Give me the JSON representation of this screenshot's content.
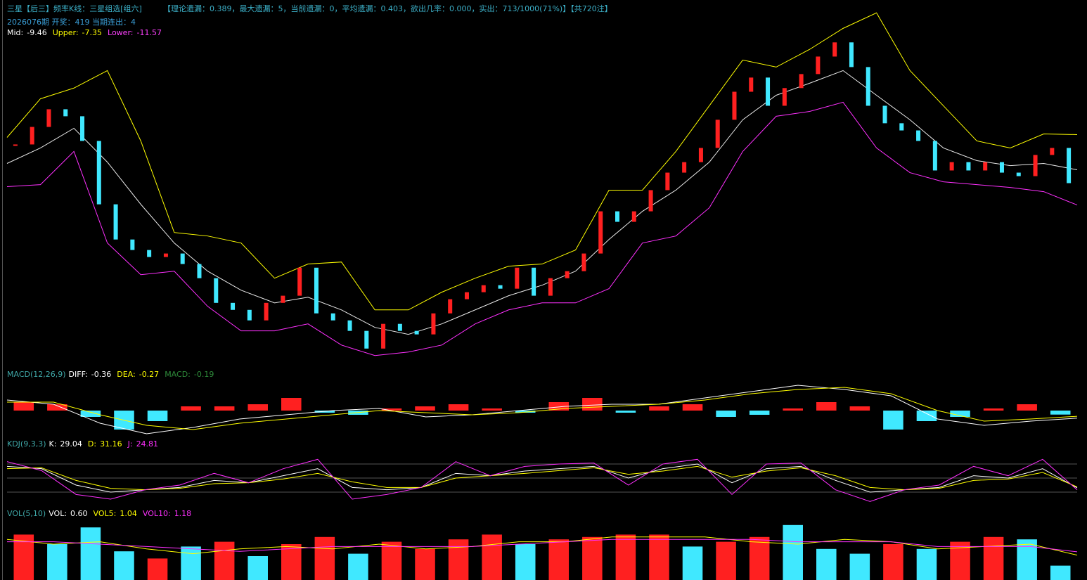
{
  "header": {
    "title": "三星【后三】频率K线：三星组选[组六]",
    "stats": "【理论遗漏：0.389，最大遗漏：5，当前遗漏：0，平均遗漏：0.403，欲出几率：0.000，实出：713/1000(71%)】【共720注】",
    "period": "2026076期 开奖：419 当期连出：4"
  },
  "chart_data": [
    {
      "type": "candlestick",
      "ylim": [
        -21.2,
        0.3
      ],
      "readouts": [
        {
          "name": "Mid:",
          "value": -9.46,
          "color": "#ffffff"
        },
        {
          "name": "Upper:",
          "value": -7.35,
          "color": "#ffff00"
        },
        {
          "name": "Lower:",
          "value": -11.57,
          "color": "#ff40ff"
        }
      ],
      "candles": {
        "up_color": "#ff2020",
        "down_color": "#40e8ff",
        "values": [
          -7.94,
          -6.89,
          -5.83,
          -6.25,
          -7.73,
          -11.53,
          -13.64,
          -14.27,
          -14.69,
          -14.48,
          -15.11,
          -15.96,
          -17.44,
          -17.86,
          -18.49,
          -17.44,
          -17.01,
          -15.33,
          -18.07,
          -18.49,
          -19.12,
          -20.18,
          -18.7,
          -19.12,
          -19.33,
          -18.07,
          -17.22,
          -16.8,
          -16.38,
          -16.59,
          -15.33,
          -17.01,
          -15.96,
          -15.54,
          -14.48,
          -11.95,
          -12.58,
          -11.95,
          -10.68,
          -9.63,
          -9.0,
          -8.15,
          -6.46,
          -4.78,
          -3.93,
          -5.62,
          -4.56,
          -3.72,
          -2.67,
          -1.82,
          -3.3,
          -5.62,
          -6.67,
          -7.1,
          -7.73,
          -9.5,
          -9.0,
          -9.5,
          -9.0,
          -9.63,
          -9.84,
          -8.57,
          -8.15,
          -10.26
        ]
      },
      "series": [
        {
          "name": "Mid",
          "type": "line",
          "color": "#e8e8e8",
          "values": [
            -9.08,
            -8.15,
            -6.97,
            -9.0,
            -11.53,
            -13.85,
            -15.54,
            -16.68,
            -17.44,
            -17.1,
            -17.86,
            -18.91,
            -19.33,
            -18.7,
            -17.86,
            -17.01,
            -16.38,
            -15.54,
            -13.64,
            -11.95,
            -10.68,
            -9.0,
            -6.46,
            -4.99,
            -4.27,
            -3.51,
            -4.99,
            -6.46,
            -8.15,
            -8.91,
            -9.21,
            -9.08,
            -9.46
          ]
        },
        {
          "name": "Upper",
          "type": "line",
          "color": "#ffff00",
          "values": [
            -7.52,
            -5.2,
            -4.56,
            -3.51,
            -7.73,
            -13.22,
            -13.43,
            -13.85,
            -15.96,
            -15.11,
            -14.99,
            -17.86,
            -17.86,
            -16.8,
            -15.96,
            -15.24,
            -15.11,
            -14.27,
            -10.68,
            -10.68,
            -8.36,
            -5.62,
            -2.88,
            -3.3,
            -2.24,
            -0.98,
            -0.05,
            -3.51,
            -5.62,
            -7.73,
            -8.15,
            -7.31,
            -7.35
          ]
        },
        {
          "name": "Lower",
          "type": "line",
          "color": "#ff30ff",
          "values": [
            -10.47,
            -10.35,
            -8.36,
            -13.85,
            -15.75,
            -15.54,
            -17.65,
            -19.12,
            -19.12,
            -18.7,
            -19.97,
            -20.6,
            -20.39,
            -19.97,
            -18.7,
            -17.86,
            -17.44,
            -17.44,
            -16.59,
            -13.85,
            -13.43,
            -11.74,
            -8.36,
            -6.25,
            -5.96,
            -5.41,
            -8.15,
            -9.63,
            -10.18,
            -10.35,
            -10.52,
            -10.77,
            -11.57
          ]
        }
      ]
    },
    {
      "type": "macd",
      "title": "MACD(12,26,9)",
      "title_color": "#3fa8a8",
      "ylim": [
        -1.2,
        1.4
      ],
      "readouts": [
        {
          "name": "DIFF:",
          "value": -0.36,
          "color": "#ffffff"
        },
        {
          "name": "DEA:",
          "value": -0.27,
          "color": "#ffff00"
        },
        {
          "name": "MACD:",
          "value": -0.19,
          "color": "#2e8b3a"
        }
      ],
      "series": [
        {
          "name": "MACD",
          "type": "bar",
          "up_color": "#ff2020",
          "down_color": "#40e8ff",
          "values": [
            0.4,
            0.3,
            -0.3,
            -0.9,
            -0.5,
            0.2,
            0.2,
            0.3,
            0.6,
            -0.1,
            -0.2,
            0.1,
            0.2,
            0.3,
            0.1,
            -0.1,
            0.4,
            0.6,
            -0.1,
            0.2,
            0.3,
            -0.3,
            -0.2,
            0.1,
            0.4,
            0.2,
            -0.9,
            -0.5,
            -0.3,
            0.1,
            0.3,
            -0.19
          ]
        },
        {
          "name": "DIFF",
          "type": "line",
          "color": "#ffffff",
          "values": [
            0.5,
            0.3,
            -0.6,
            -1.1,
            -0.8,
            -0.4,
            -0.2,
            0.0,
            0.1,
            -0.3,
            -0.2,
            0.0,
            0.2,
            0.3,
            0.3,
            0.6,
            0.9,
            1.2,
            1.0,
            0.7,
            -0.4,
            -0.7,
            -0.5,
            -0.36
          ]
        },
        {
          "name": "DEA",
          "type": "line",
          "color": "#ffff00",
          "values": [
            0.4,
            0.4,
            -0.2,
            -0.7,
            -0.9,
            -0.6,
            -0.4,
            -0.2,
            0.0,
            -0.1,
            -0.2,
            -0.1,
            0.1,
            0.2,
            0.3,
            0.5,
            0.8,
            1.0,
            1.1,
            0.8,
            0.0,
            -0.5,
            -0.4,
            -0.27
          ]
        }
      ]
    },
    {
      "type": "kdj",
      "title": "KDJ(9,3,3)",
      "title_color": "#3fa8a8",
      "ylim": [
        -10,
        110
      ],
      "gridlines": [
        20,
        50,
        80
      ],
      "grid_color": "#555555",
      "readouts": [
        {
          "name": "K:",
          "value": 29.04,
          "color": "#ffffff"
        },
        {
          "name": "D:",
          "value": 31.16,
          "color": "#ffff00"
        },
        {
          "name": "J:",
          "value": 24.81,
          "color": "#ff30ff"
        }
      ],
      "series": [
        {
          "name": "K",
          "type": "line",
          "color": "#ffffff",
          "values": [
            75,
            70,
            35,
            20,
            25,
            30,
            45,
            40,
            55,
            70,
            30,
            25,
            30,
            60,
            55,
            65,
            70,
            75,
            50,
            70,
            80,
            40,
            70,
            75,
            45,
            20,
            25,
            30,
            55,
            50,
            70,
            29.04
          ]
        },
        {
          "name": "D",
          "type": "line",
          "color": "#ffff00",
          "values": [
            70,
            72,
            45,
            28,
            25,
            28,
            38,
            40,
            48,
            60,
            42,
            30,
            30,
            50,
            55,
            60,
            66,
            72,
            58,
            65,
            75,
            52,
            65,
            72,
            55,
            30,
            25,
            28,
            45,
            48,
            62,
            31.16
          ]
        },
        {
          "name": "J",
          "type": "line",
          "color": "#ff30ff",
          "values": [
            85,
            66,
            15,
            5,
            25,
            35,
            60,
            40,
            70,
            90,
            5,
            15,
            30,
            85,
            55,
            75,
            80,
            82,
            35,
            80,
            90,
            15,
            80,
            82,
            25,
            0,
            25,
            35,
            75,
            55,
            90,
            24.81
          ]
        }
      ]
    },
    {
      "type": "volume",
      "title": "VOL(5,10)",
      "title_color": "#3fa8a8",
      "ylim": [
        0,
        2.5
      ],
      "readouts": [
        {
          "name": "VOL:",
          "value": 0.6,
          "label": "0.60",
          "color": "#ffffff"
        },
        {
          "name": "VOL5:",
          "value": 1.04,
          "color": "#ffff00"
        },
        {
          "name": "VOL10:",
          "value": 1.18,
          "color": "#ff30ff"
        }
      ],
      "series": [
        {
          "name": "VOL",
          "type": "bar",
          "values": [
            1.9,
            1.5,
            2.2,
            1.2,
            0.9,
            1.4,
            1.6,
            1.0,
            1.5,
            1.8,
            1.1,
            1.6,
            1.3,
            1.7,
            1.9,
            1.5,
            1.7,
            1.8,
            1.9,
            1.9,
            1.4,
            1.6,
            1.8,
            2.3,
            1.3,
            1.1,
            1.5,
            1.3,
            1.6,
            1.8,
            1.7,
            0.6
          ],
          "colors": [
            "#ff2020",
            "#40e8ff",
            "#40e8ff",
            "#40e8ff",
            "#ff2020",
            "#40e8ff",
            "#ff2020",
            "#40e8ff",
            "#ff2020",
            "#ff2020",
            "#40e8ff",
            "#ff2020",
            "#ff2020",
            "#ff2020",
            "#ff2020",
            "#40e8ff",
            "#ff2020",
            "#ff2020",
            "#ff2020",
            "#ff2020",
            "#40e8ff",
            "#ff2020",
            "#ff2020",
            "#40e8ff",
            "#40e8ff",
            "#40e8ff",
            "#ff2020",
            "#40e8ff",
            "#ff2020",
            "#ff2020",
            "#40e8ff",
            "#40e8ff"
          ]
        },
        {
          "name": "VOL5",
          "type": "line",
          "color": "#ffff00",
          "values": [
            1.7,
            1.5,
            1.6,
            1.3,
            1.1,
            1.3,
            1.4,
            1.3,
            1.5,
            1.3,
            1.4,
            1.6,
            1.6,
            1.8,
            1.8,
            1.8,
            1.6,
            1.5,
            1.7,
            1.6,
            1.3,
            1.4,
            1.5,
            1.04
          ]
        },
        {
          "name": "VOL10",
          "type": "line",
          "color": "#ff30ff",
          "values": [
            1.6,
            1.6,
            1.5,
            1.4,
            1.3,
            1.2,
            1.3,
            1.4,
            1.4,
            1.4,
            1.4,
            1.5,
            1.6,
            1.7,
            1.7,
            1.7,
            1.7,
            1.6,
            1.6,
            1.6,
            1.4,
            1.4,
            1.4,
            1.18
          ]
        }
      ]
    }
  ]
}
